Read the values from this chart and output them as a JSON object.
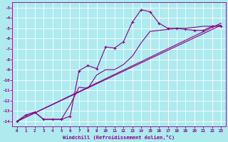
{
  "xlabel": "Windchill (Refroidissement éolien,°C)",
  "bg_color": "#aeeaee",
  "line_color": "#880088",
  "grid_color": "#cceeee",
  "ylim": [
    -14.5,
    -2.5
  ],
  "xlim": [
    -0.5,
    23.5
  ],
  "yticks": [
    -14,
    -13,
    -12,
    -11,
    -10,
    -9,
    -8,
    -7,
    -6,
    -5,
    -4,
    -3
  ],
  "xticks": [
    0,
    1,
    2,
    3,
    4,
    5,
    6,
    7,
    8,
    9,
    10,
    11,
    12,
    13,
    14,
    15,
    16,
    17,
    18,
    19,
    20,
    21,
    22,
    23
  ],
  "series1_x": [
    0,
    1,
    2,
    3,
    4,
    5,
    6,
    7,
    8,
    9,
    10,
    11,
    12,
    13,
    14,
    15,
    16,
    17,
    18,
    19,
    20,
    21,
    22,
    23
  ],
  "series1_y": [
    -14.0,
    -13.4,
    -13.1,
    -13.8,
    -13.8,
    -13.8,
    -13.5,
    -9.1,
    -8.6,
    -8.9,
    -6.8,
    -6.9,
    -6.3,
    -4.4,
    -3.2,
    -3.4,
    -4.5,
    -5.0,
    -5.0,
    -5.1,
    -5.2,
    -5.2,
    -4.8,
    -4.8
  ],
  "series2_x": [
    0,
    1,
    2,
    3,
    4,
    5,
    6,
    7,
    8,
    9,
    10,
    11,
    12,
    13,
    14,
    15,
    16,
    17,
    18,
    19,
    20,
    21,
    22,
    23
  ],
  "series2_y": [
    -14.0,
    -13.4,
    -13.1,
    -13.8,
    -13.8,
    -13.8,
    -12.4,
    -10.7,
    -10.8,
    -9.5,
    -9.0,
    -9.0,
    -8.5,
    -7.7,
    -6.4,
    -5.3,
    -5.2,
    -5.1,
    -5.0,
    -5.0,
    -4.9,
    -4.8,
    -4.8,
    -4.7
  ],
  "series3_x": [
    0,
    23
  ],
  "series3_y": [
    -14.0,
    -4.7
  ],
  "series4_x": [
    0,
    23
  ],
  "series4_y": [
    -14.0,
    -4.5
  ]
}
